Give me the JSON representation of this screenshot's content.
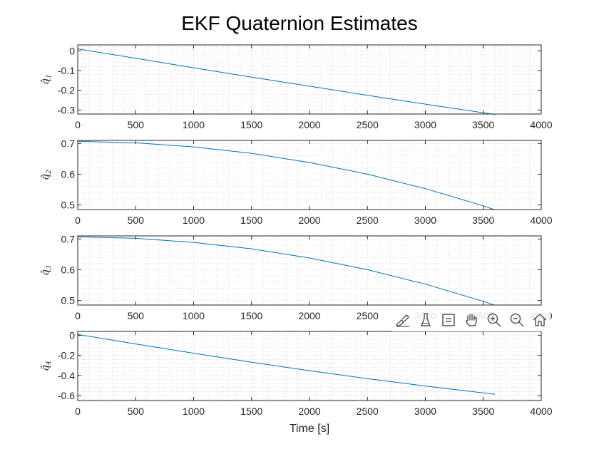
{
  "chart_data": {
    "type": "line",
    "title": "EKF Quaternion Estimates",
    "xlabel": "Time [s]",
    "line_color": "#0072BD",
    "grid": "minor dotted",
    "subplots": [
      {
        "ylabel_base": "q̂",
        "ylabel_sub": "1",
        "xlim": [
          0,
          4000
        ],
        "ylim": [
          -0.32,
          0.03
        ],
        "yticks": [
          0,
          -0.1,
          -0.2,
          -0.3
        ],
        "ytick_labels": [
          "0",
          "-0.1",
          "-0.2",
          "-0.3"
        ],
        "xticks": [
          0,
          500,
          1000,
          1500,
          2000,
          2500,
          3000,
          3500,
          4000
        ],
        "xtick_labels": [
          "0",
          "500",
          "1000",
          "1500",
          "2000",
          "2500",
          "3000",
          "3500",
          "4000"
        ],
        "series": [
          {
            "x": [
              0,
              500,
              1000,
              1500,
              2000,
              2500,
              3000,
              3500,
              3600
            ],
            "y": [
              0.01,
              -0.038,
              -0.086,
              -0.133,
              -0.179,
              -0.225,
              -0.27,
              -0.314,
              -0.322
            ]
          }
        ]
      },
      {
        "ylabel_base": "q̂",
        "ylabel_sub": "2",
        "xlim": [
          0,
          4000
        ],
        "ylim": [
          0.485,
          0.71
        ],
        "yticks": [
          0.7,
          0.6,
          0.5
        ],
        "ytick_labels": [
          "0.7",
          "0.6",
          "0.5"
        ],
        "xticks": [
          0,
          500,
          1000,
          1500,
          2000,
          2500,
          3000,
          3500,
          4000
        ],
        "xtick_labels": [
          "0",
          "500",
          "1000",
          "1500",
          "2000",
          "2500",
          "3000",
          "3500",
          "4000"
        ],
        "series": [
          {
            "x": [
              0,
              500,
              1000,
              1500,
              2000,
              2500,
              3000,
              3500,
              3600
            ],
            "y": [
              0.707,
              0.702,
              0.689,
              0.668,
              0.638,
              0.6,
              0.553,
              0.497,
              0.484
            ]
          }
        ]
      },
      {
        "ylabel_base": "q̂",
        "ylabel_sub": "3",
        "xlim": [
          0,
          4000
        ],
        "ylim": [
          0.485,
          0.71
        ],
        "yticks": [
          0.7,
          0.6,
          0.5
        ],
        "ytick_labels": [
          "0.7",
          "0.6",
          "0.5"
        ],
        "xticks": [
          0,
          500,
          1000,
          1500,
          2000,
          2500,
          3000,
          3500,
          4000
        ],
        "xtick_labels": [
          "0",
          "500",
          "1000",
          "1500",
          "2000",
          "2500",
          "3000",
          "3500",
          "4000"
        ],
        "series": [
          {
            "x": [
              0,
              500,
              1000,
              1500,
              2000,
              2500,
              3000,
              3500,
              3600
            ],
            "y": [
              0.707,
              0.702,
              0.689,
              0.668,
              0.638,
              0.6,
              0.553,
              0.497,
              0.484
            ]
          }
        ]
      },
      {
        "ylabel_base": "q̂",
        "ylabel_sub": "4",
        "xlim": [
          0,
          4000
        ],
        "ylim": [
          -0.65,
          0.04
        ],
        "yticks": [
          0,
          -0.2,
          -0.4,
          -0.6
        ],
        "ytick_labels": [
          "0",
          "-0.2",
          "-0.4",
          "-0.6"
        ],
        "xticks": [
          0,
          500,
          1000,
          1500,
          2000,
          2500,
          3000,
          3500,
          4000
        ],
        "xtick_labels": [
          "0",
          "500",
          "1000",
          "1500",
          "2000",
          "2500",
          "3000",
          "3500",
          "4000"
        ],
        "series": [
          {
            "x": [
              0,
              500,
              1000,
              1500,
              2000,
              2500,
              3000,
              3500,
              3600
            ],
            "y": [
              0.01,
              -0.085,
              -0.178,
              -0.267,
              -0.352,
              -0.431,
              -0.505,
              -0.574,
              -0.588
            ]
          }
        ]
      }
    ]
  },
  "toolbar": {
    "buttons": [
      "brush-edit-icon",
      "data-tips-icon",
      "legend-icon",
      "pan-hand-icon",
      "zoom-in-icon",
      "zoom-out-icon",
      "home-icon"
    ]
  }
}
